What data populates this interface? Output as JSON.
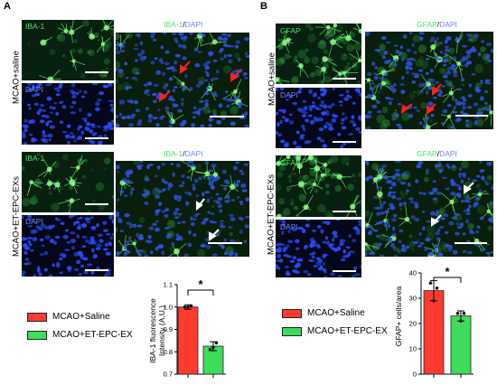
{
  "panelA": {
    "letter": "A",
    "row1_label": "MCAO+saline",
    "row2_label": "MCAO+ET-EPC-EXs",
    "iba": "IBA-1",
    "dapi": "DAPI",
    "merge_green": "IBA-1",
    "merge_sep": "/",
    "merge_blue": "DAPI",
    "legend": [
      {
        "label": "MCAO+Saline",
        "color": "#ff3b2f"
      },
      {
        "label": "MCAO+ET-EPC-EX",
        "color": "#3ddc5b"
      }
    ]
  },
  "panelB": {
    "letter": "B",
    "row1_label": "MCAO+saline",
    "row2_label": "MCAO+ET-EPC-EXs",
    "gfap": "GFAP",
    "dapi": "DAPI",
    "merge_green": "GFAP",
    "merge_sep": "/",
    "merge_blue": "DAPI",
    "legend": [
      {
        "label": "MCAO+Saline",
        "color": "#ff3b2f"
      },
      {
        "label": "MCAO+ET-EPC-EX",
        "color": "#3ddc5b"
      }
    ]
  },
  "chart_data": [
    {
      "type": "bar",
      "categories": [
        "MCAO+Saline",
        "MCAO+ET-EPC-EX"
      ],
      "values": [
        1.0,
        0.825
      ],
      "errors": [
        0.01,
        0.02
      ],
      "points": [
        [
          1.0,
          1.0,
          1.005
        ],
        [
          0.81,
          0.82,
          0.84
        ]
      ],
      "colors": [
        "#ff3b2f",
        "#3ddc5b"
      ],
      "ylabel_line1": "IBA-1 fluorescence",
      "ylabel_line2": "Intensity (A.U.)",
      "ylim": [
        0.7,
        1.1
      ],
      "yticks": [
        "0.7",
        "0.8",
        "0.9",
        "1.0",
        "1.1"
      ],
      "significance": "*"
    },
    {
      "type": "bar",
      "categories": [
        "MCAO+Saline",
        "MCAO+ET-EPC-EX"
      ],
      "values": [
        33,
        23
      ],
      "errors": [
        4,
        2
      ],
      "points": [
        [
          36,
          29,
          34
        ],
        [
          24,
          21,
          24
        ]
      ],
      "colors": [
        "#ff3b2f",
        "#3ddc5b"
      ],
      "ylabel_line1": "GFAP+ cells/area",
      "ylim": [
        0,
        40
      ],
      "yticks": [
        "0",
        "10",
        "20",
        "30",
        "40"
      ],
      "significance": "*"
    }
  ]
}
